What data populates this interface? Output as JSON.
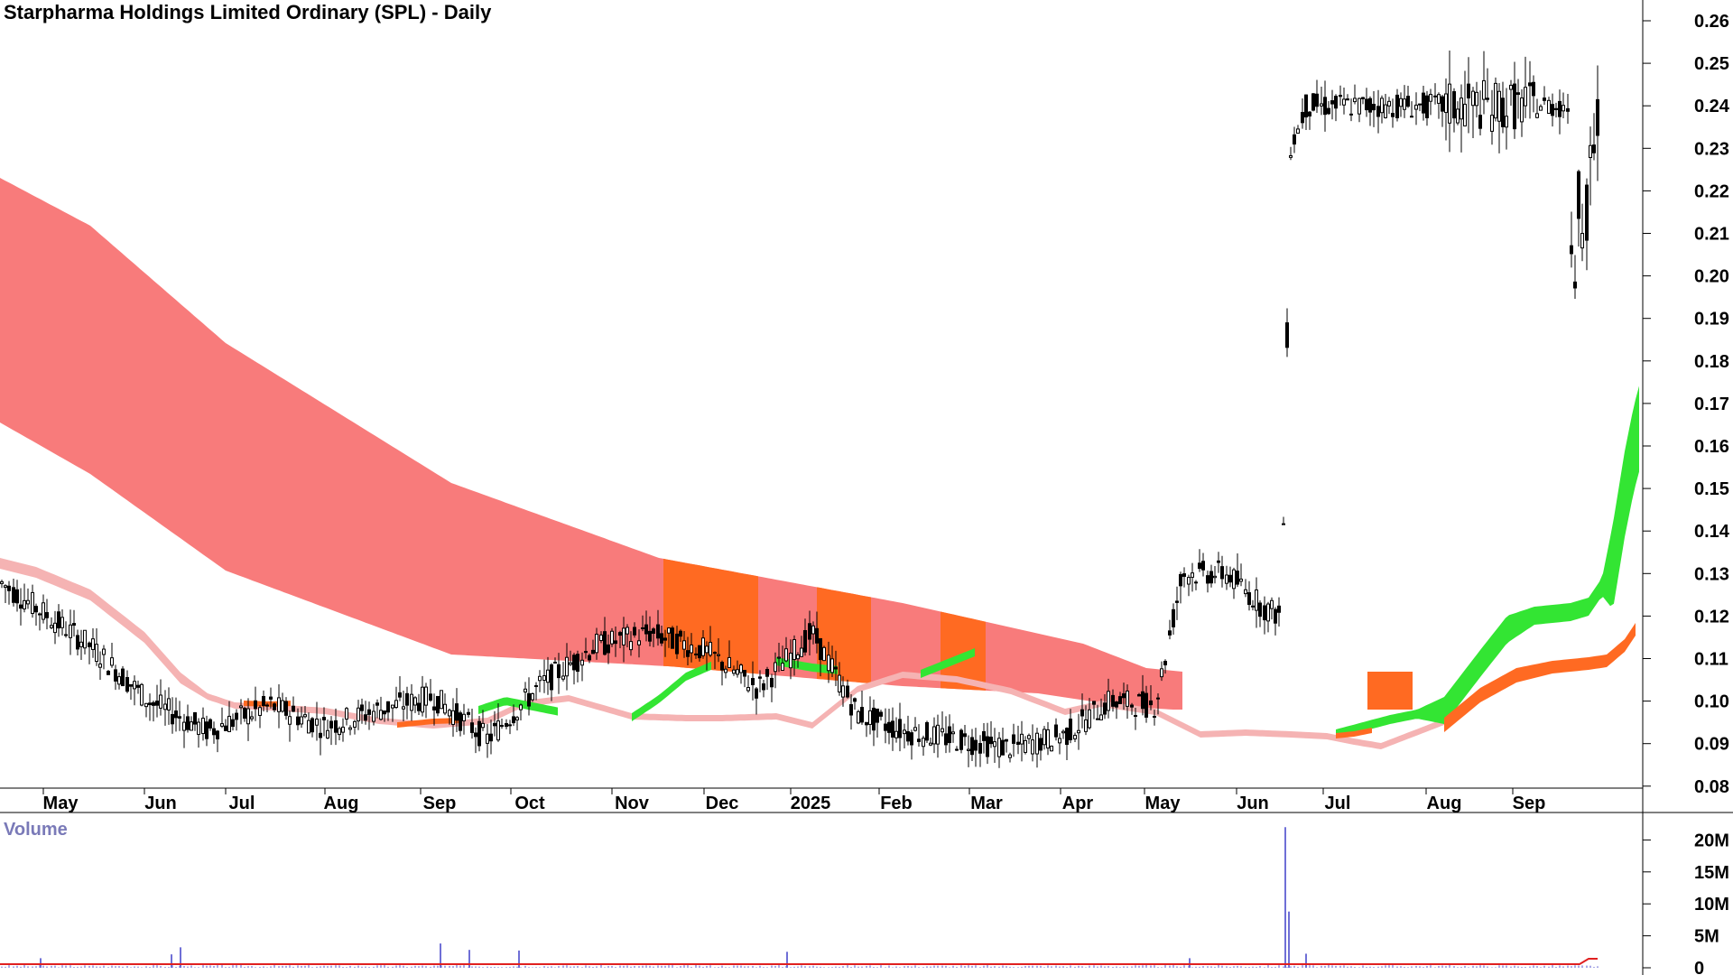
{
  "chart_data": {
    "type": "candlestick",
    "title": "Starpharma Holdings Limited Ordinary (SPL) - Daily",
    "x_tick_labels": [
      "May",
      "Jun",
      "Jul",
      "Aug",
      "Sep",
      "Oct",
      "Nov",
      "Dec",
      "2025",
      "Feb",
      "Mar",
      "Apr",
      "May",
      "Jun",
      "Jul",
      "Aug",
      "Sep"
    ],
    "y_tick_labels": [
      "0.26",
      "0.25",
      "0.24",
      "0.23",
      "0.22",
      "0.21",
      "0.20",
      "0.19",
      "0.18",
      "0.17",
      "0.16",
      "0.15",
      "0.14",
      "0.13",
      "0.12",
      "0.11",
      "0.10",
      "0.09",
      "0.08"
    ],
    "ylim": [
      0.075,
      0.263
    ],
    "price_series": {
      "name": "price",
      "note_points": [
        [
          0,
          0.128
        ],
        [
          40,
          0.122
        ],
        [
          100,
          0.113
        ],
        [
          165,
          0.1
        ],
        [
          230,
          0.093
        ],
        [
          300,
          0.099
        ],
        [
          360,
          0.094
        ],
        [
          420,
          0.098
        ],
        [
          480,
          0.101
        ],
        [
          540,
          0.091
        ],
        [
          600,
          0.104
        ],
        [
          660,
          0.113
        ],
        [
          720,
          0.116
        ],
        [
          780,
          0.112
        ],
        [
          840,
          0.103
        ],
        [
          900,
          0.116
        ],
        [
          950,
          0.097
        ],
        [
          1000,
          0.093
        ],
        [
          1060,
          0.091
        ],
        [
          1120,
          0.089
        ],
        [
          1180,
          0.092
        ],
        [
          1230,
          0.1
        ],
        [
          1280,
          0.099
        ],
        [
          1310,
          0.13
        ],
        [
          1360,
          0.13
        ],
        [
          1400,
          0.122
        ],
        [
          1420,
          0.12
        ],
        [
          1430,
          0.23
        ],
        [
          1447,
          0.24
        ]
      ]
    },
    "bands": {
      "long_term_red": {
        "color": "#f87b7b"
      },
      "short_term_pink": {
        "color": "#f5b3b3"
      },
      "short_green": {
        "color": "#33e533"
      },
      "short_orange": {
        "color": "#ff6a22"
      },
      "shaded_orange": {
        "color": "#ff6a22"
      }
    },
    "volume_panel": {
      "title": "Volume",
      "y_tick_labels": [
        "20M",
        "15M",
        "10M",
        "5M",
        "0"
      ],
      "ylim": [
        0,
        23
      ],
      "spikes_millions": [
        [
          1424,
          22
        ],
        [
          1428,
          8.8
        ],
        [
          488,
          3.8
        ],
        [
          200,
          3.2
        ],
        [
          520,
          2.8
        ],
        [
          575,
          2.7
        ],
        [
          872,
          2.5
        ],
        [
          190,
          2.1
        ],
        [
          45,
          1.5
        ],
        [
          1318,
          1.5
        ],
        [
          1447,
          2.2
        ]
      ],
      "bar_color": "#6f6fd6",
      "avg_line_color": "#e02020"
    }
  }
}
